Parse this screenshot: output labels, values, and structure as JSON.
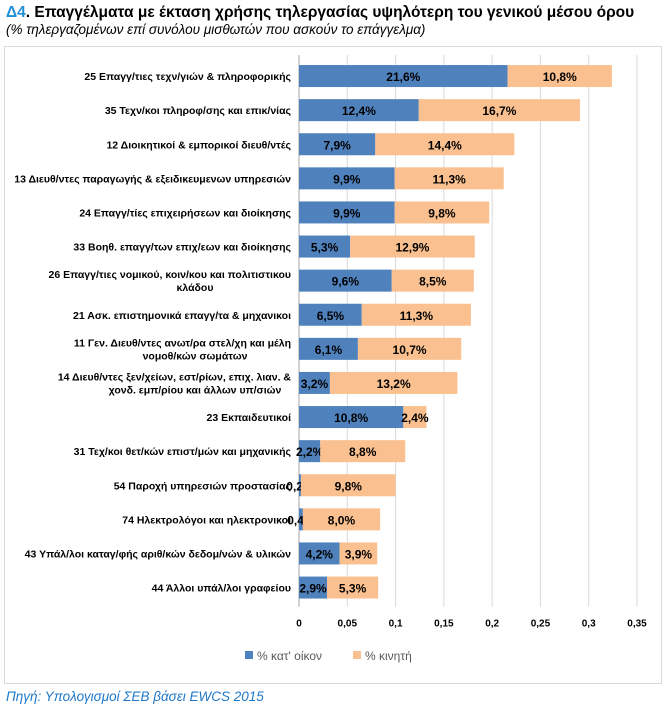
{
  "title_number": "Δ4",
  "title_text": ". Επαγγέλματα με έκταση χρήσης τηλεργασίας υψηλότερη του γενικού μέσου όρου",
  "subtitle": "(% τηλεργαζομένων επί συνόλου μισθωτών που ασκούν το επάγγελμα)",
  "source": "Πηγή: Υπολογισμοί ΣΕΒ βάσει EWCS 2015",
  "chart_data": {
    "type": "bar",
    "orientation": "horizontal",
    "stacked": true,
    "categories": [
      "25 Επαγγ/τιες τεχν/γιών & πληροφορικής",
      "35 Τεχν/κοι πληροφ/σης και επικ/νίας",
      "12 Διοικητικοί & εμπορικοί διευθ/ντές",
      "13 Διευθ/ντες παραγωγής & εξειδικευμενων υπηρεσιών",
      "24 Επαγγ/τίες επιχειρήσεων και διοίκησης",
      "33 Βοηθ. επαγγ/των επιχ/εων και διοίκησης",
      "26 Επαγγ/τιες νομικού, κοιν/κου και πολιτιστικου κλάδου",
      "21 Ασκ. επιστημονικά επαγγ/τα & μηχανικοι",
      "11 Γεν. Διευθ/ντες ανωτ/ρα στελ/χη και μέλη νομοθ/κών σωμάτων",
      "14 Διευθ/ντες ξεν/χείων, εστ/ρίων, επιχ. λιαν. & χονδ. εμπ/ρίου και άλλων υπ/σιών",
      "23 Εκπαιδευτικοί",
      "31 Τεχ/κοι θετ/κών επιστ/μών και μηχανικής",
      "54 Παροχή υπηρεσιών προστασίας",
      "74 Ηλεκτρολόγοι και ηλεκτρονικοί",
      "43 Υπάλ/λοι καταγ/φής αριθ/κών δεδομ/νών & υλικών",
      "44 Άλλοι υπάλ/λοι γραφείου"
    ],
    "series": [
      {
        "name": "% κατ' οίκον",
        "color": "#4f81bd",
        "values": [
          0.216,
          0.124,
          0.079,
          0.099,
          0.099,
          0.053,
          0.096,
          0.065,
          0.061,
          0.032,
          0.108,
          0.022,
          0.002,
          0.004,
          0.042,
          0.029
        ],
        "labels": [
          "21,6%",
          "12,4%",
          "7,9%",
          "9,9%",
          "9,9%",
          "5,3%",
          "9,6%",
          "6,5%",
          "6,1%",
          "3,2%",
          "10,8%",
          "2,2%",
          "0,2%",
          "0,4%",
          "4,2%",
          "2,9%"
        ]
      },
      {
        "name": "% κινητή",
        "color": "#fac08f",
        "values": [
          0.108,
          0.167,
          0.144,
          0.113,
          0.098,
          0.129,
          0.085,
          0.113,
          0.107,
          0.132,
          0.024,
          0.088,
          0.098,
          0.08,
          0.039,
          0.053
        ],
        "labels": [
          "10,8%",
          "16,7%",
          "14,4%",
          "11,3%",
          "9,8%",
          "12,9%",
          "8,5%",
          "11,3%",
          "10,7%",
          "13,2%",
          "2,4%",
          "8,8%",
          "9,8%",
          "8,0%",
          "3,9%",
          "5,3%"
        ]
      }
    ],
    "xlim": [
      0,
      0.35
    ],
    "xticks": [
      "0",
      "0,05",
      "0,1",
      "0,15",
      "0,2",
      "0,25",
      "0,3",
      "0,35"
    ],
    "grid": "vertical",
    "legend": "bottom"
  }
}
